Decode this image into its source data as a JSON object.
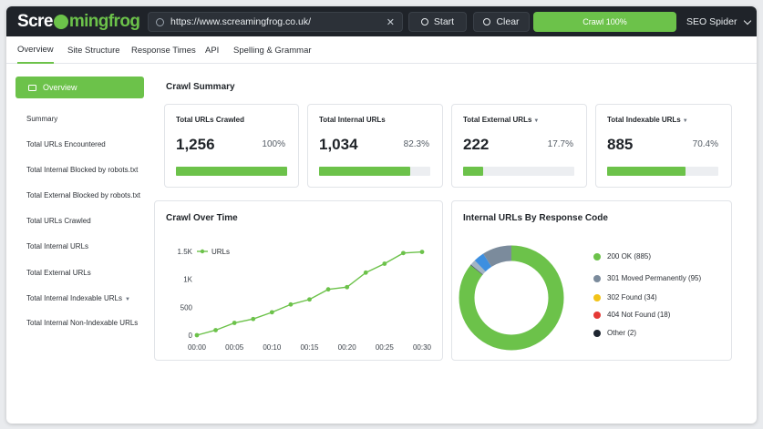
{
  "app": {
    "logo_prefix": "Scre",
    "logo_suffix": "mingfrog",
    "url": "https://www.screamingfrog.co.uk/",
    "start_label": "Start",
    "clear_label": "Clear",
    "crawl_label": "Crawl 100%",
    "crawl_progress_pct": 100,
    "product_label": "SEO Spider",
    "accent_color": "#6cc24a"
  },
  "tabs": [
    "Overview",
    "Site Structure",
    "Response Times",
    "API",
    "Spelling & Grammar"
  ],
  "active_tab": "Overview",
  "sidebar": {
    "active": "Overview",
    "items": [
      "Summary",
      "Total URLs Encountered",
      "Total Internal Blocked by robots.txt",
      "Total External Blocked by robots.txt",
      "Total URLs Crawled",
      "Total Internal URLs",
      "Total External URLs",
      "Total Internal Indexable URLs",
      "Total Internal Non-Indexable URLs"
    ]
  },
  "crawl_summary": {
    "title": "Crawl Summary",
    "stats": [
      {
        "label": "Total URLs Crawled",
        "value": "1,256",
        "pct": "100%",
        "fill": 1.0,
        "has_arrow": false
      },
      {
        "label": "Total Internal URLs",
        "value": "1,034",
        "pct": "82.3%",
        "fill": 0.823,
        "has_arrow": false
      },
      {
        "label": "Total External URLs",
        "value": "222",
        "pct": "17.7%",
        "fill": 0.177,
        "has_arrow": true
      },
      {
        "label": "Total Indexable URLs",
        "value": "885",
        "pct": "70.4%",
        "fill": 0.704,
        "has_arrow": true
      }
    ]
  },
  "crawl_over_time": {
    "title": "Crawl Over Time",
    "legend": "URLs"
  },
  "response_codes": {
    "title": "Internal URLs By Response Code",
    "items": [
      {
        "label": "200 OK (885)",
        "color": "#6cc24a"
      },
      {
        "label": "301 Moved Permanently (95)",
        "color": "#7b8b9c"
      },
      {
        "label": "302 Found (34)",
        "color": "#f2c318"
      },
      {
        "label": "404 Not Found (18)",
        "color": "#e53935"
      },
      {
        "label": "Other (2)",
        "color": "#1e2530"
      }
    ]
  },
  "chart_data": [
    {
      "type": "line",
      "x": [
        "00:00",
        "00:02",
        "00:05",
        "00:07",
        "00:10",
        "00:12",
        "00:15",
        "00:17",
        "00:20",
        "00:22",
        "00:25",
        "00:27",
        "00:30"
      ],
      "x_ticks": [
        "00:00",
        "00:05",
        "00:10",
        "00:15",
        "00:20",
        "00:25",
        "00:30"
      ],
      "series": [
        {
          "name": "URLs",
          "values": [
            0,
            90,
            220,
            290,
            410,
            550,
            640,
            820,
            860,
            1120,
            1280,
            1470,
            1490
          ]
        }
      ],
      "y_ticks": [
        "0",
        "500",
        "1K",
        "1.5K"
      ],
      "ylim": [
        0,
        1500
      ],
      "color": "#6cc24a",
      "grid": false
    },
    {
      "type": "pie",
      "labels": [
        "200 OK",
        "301 Moved Permanently",
        "302 Found",
        "404 Not Found",
        "Other"
      ],
      "values": [
        885,
        95,
        34,
        18,
        2
      ],
      "colors": [
        "#6cc24a",
        "#7b8b9c",
        "#3d8fe0",
        "#a3b4c4",
        "#3c4552"
      ],
      "donut": true
    }
  ]
}
